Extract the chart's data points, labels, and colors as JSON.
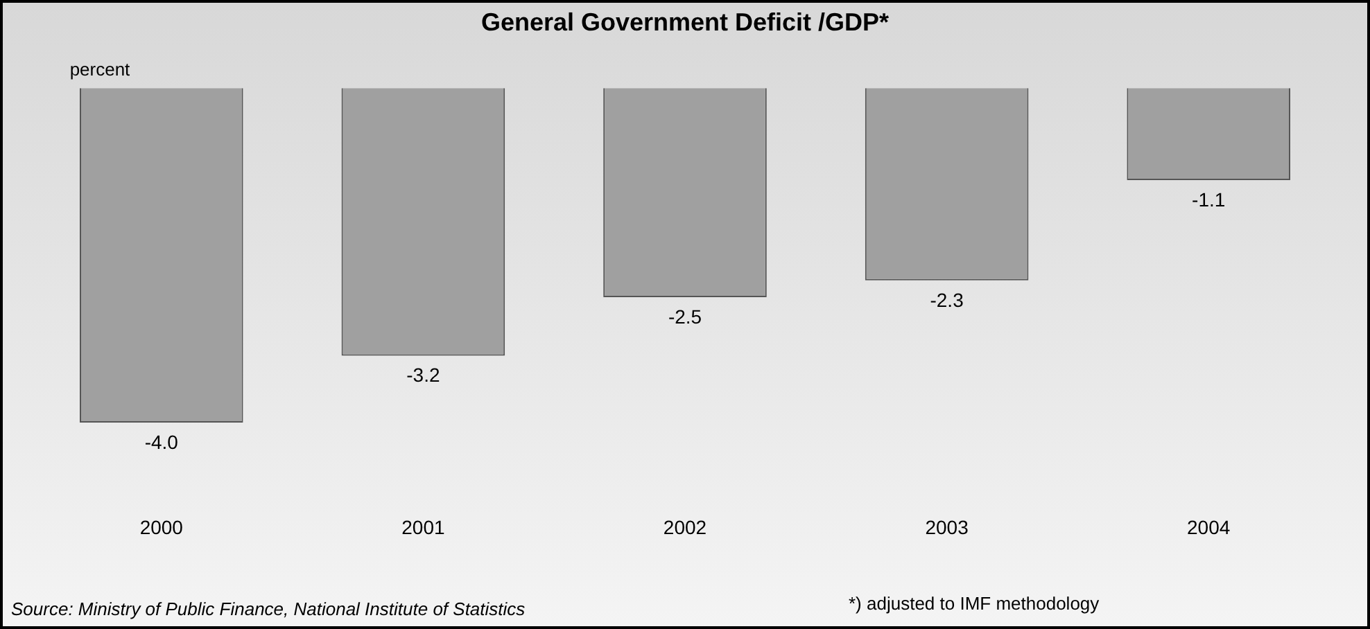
{
  "chart_data": {
    "type": "bar",
    "title": "General Government Deficit /GDP*",
    "ylabel": "percent",
    "categories": [
      "2000",
      "2001",
      "2002",
      "2003",
      "2004"
    ],
    "values": [
      -4.0,
      -3.2,
      -2.5,
      -2.3,
      -1.1
    ],
    "color": "#a0a0a0",
    "value_labels": [
      "-4.0",
      "-3.2",
      "-2.5",
      "-2.3",
      "-1.1"
    ],
    "tick_labels": "x",
    "annotations": [
      "Source: Ministry of Public Finance, National Institute of Statistics",
      "*) adjusted to IMF methodology"
    ]
  }
}
